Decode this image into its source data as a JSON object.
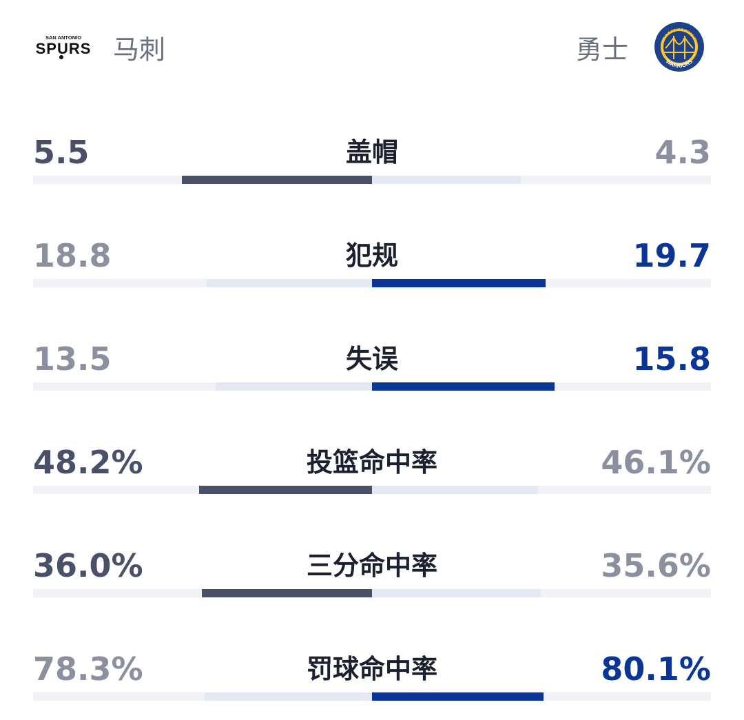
{
  "header": {
    "left_team": {
      "name": "马刺",
      "logo_icon": "spurs-logo-icon",
      "logo_text_top": "SAN ANTONIO",
      "logo_text_main": "SPURS"
    },
    "right_team": {
      "name": "勇士",
      "logo_icon": "warriors-logo-icon",
      "logo_text_top": "GOLDEN STATE",
      "logo_text_bottom": "WARRIORS"
    }
  },
  "colors": {
    "left_strong": "#4a5068",
    "left_light": "#e4e8f2",
    "right_strong": "#0a3596",
    "right_light": "#e4e8f2",
    "muted_text": "#8b8f9e",
    "track": "#f1f2f6"
  },
  "chart_data": {
    "type": "bar",
    "orientation": "diverging-horizontal",
    "series": [
      {
        "name": "马刺",
        "values": [
          5.5,
          18.8,
          13.5,
          48.2,
          36.0,
          78.3
        ]
      },
      {
        "name": "勇士",
        "values": [
          4.3,
          19.7,
          15.8,
          46.1,
          35.6,
          80.1
        ]
      }
    ],
    "categories": [
      "盖帽",
      "犯规",
      "失误",
      "投篮命中率",
      "三分命中率",
      "罚球命中率"
    ],
    "rows": [
      {
        "label": "盖帽",
        "left": 5.5,
        "left_text": "5.5",
        "right": 4.3,
        "right_text": "4.3",
        "leader": "left"
      },
      {
        "label": "犯规",
        "left": 18.8,
        "left_text": "18.8",
        "right": 19.7,
        "right_text": "19.7",
        "leader": "right"
      },
      {
        "label": "失误",
        "left": 13.5,
        "left_text": "13.5",
        "right": 15.8,
        "right_text": "15.8",
        "leader": "right"
      },
      {
        "label": "投篮命中率",
        "left": 48.2,
        "left_text": "48.2%",
        "right": 46.1,
        "right_text": "46.1%",
        "leader": "left"
      },
      {
        "label": "三分命中率",
        "left": 36.0,
        "left_text": "36.0%",
        "right": 35.6,
        "right_text": "35.6%",
        "leader": "left"
      },
      {
        "label": "罚球命中率",
        "left": 78.3,
        "left_text": "78.3%",
        "right": 80.1,
        "right_text": "80.1%",
        "leader": "right"
      }
    ],
    "bar_fraction_of_half": [
      {
        "left": 0.561,
        "right": 0.439
      },
      {
        "left": 0.488,
        "right": 0.512
      },
      {
        "left": 0.461,
        "right": 0.539
      },
      {
        "left": 0.511,
        "right": 0.489
      },
      {
        "left": 0.503,
        "right": 0.497
      },
      {
        "left": 0.494,
        "right": 0.506
      }
    ]
  }
}
